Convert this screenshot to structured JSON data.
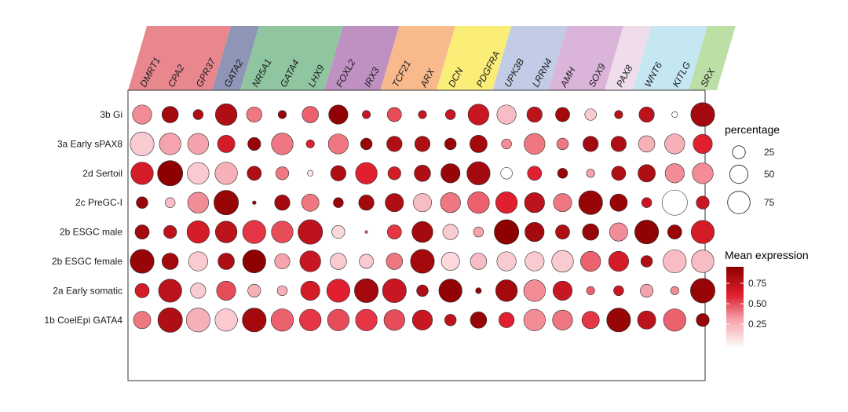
{
  "chart_data": {
    "type": "dot-plot",
    "genes": [
      "DMRT1",
      "CPA2",
      "GPR37",
      "GATA2",
      "NR5A1",
      "GATA4",
      "LHX9",
      "FOXL2",
      "IRX3",
      "TCF21",
      "ARX",
      "DCN",
      "PDGFRA",
      "UPK3B",
      "LRRN4",
      "AMH",
      "SOX9",
      "PAX8",
      "WNT6",
      "KITLG",
      "SRX"
    ],
    "groups": [
      {
        "genes": [
          "DMRT1",
          "CPA2",
          "GPR37"
        ],
        "color": "#E8888E"
      },
      {
        "genes": [
          "GATA2"
        ],
        "color": "#8F95B7"
      },
      {
        "genes": [
          "NR5A1",
          "GATA4",
          "LHX9"
        ],
        "color": "#8FC59F"
      },
      {
        "genes": [
          "FOXL2",
          "IRX3"
        ],
        "color": "#BF90C2"
      },
      {
        "genes": [
          "TCF21",
          "ARX"
        ],
        "color": "#F8BA8C"
      },
      {
        "genes": [
          "DCN",
          "PDGFRA"
        ],
        "color": "#FAEE78"
      },
      {
        "genes": [
          "UPK3B",
          "LRRN4"
        ],
        "color": "#C2CCE6"
      },
      {
        "genes": [
          "AMH",
          "SOX9"
        ],
        "color": "#DAB5D9"
      },
      {
        "genes": [
          "PAX8"
        ],
        "color": "#EFDDEC"
      },
      {
        "genes": [
          "WNT6",
          "KITLG"
        ],
        "color": "#C4E7F1"
      },
      {
        "genes": [
          "SRX"
        ],
        "color": "#BCDFA6"
      }
    ],
    "cell_types": [
      "3b Gi",
      "3a Early sPAX8",
      "2d Sertoil",
      "2c PreGC-I",
      "2b ESGC male",
      "2b ESGC female",
      "2a Early somatic",
      "1b CoelEpi GATA4"
    ],
    "percentage": [
      [
        55,
        40,
        15,
        70,
        35,
        10,
        40,
        55,
        10,
        30,
        10,
        15,
        65,
        55,
        35,
        30,
        20,
        10,
        35,
        5,
        85
      ],
      [
        85,
        70,
        65,
        45,
        25,
        70,
        10,
        60,
        20,
        35,
        35,
        20,
        45,
        15,
        65,
        20,
        35,
        35,
        40,
        60,
        55
      ],
      [
        75,
        95,
        70,
        75,
        30,
        25,
        5,
        35,
        70,
        25,
        40,
        55,
        80,
        20,
        30,
        15,
        10,
        30,
        45,
        55,
        65
      ],
      [
        20,
        15,
        65,
        90,
        2,
        35,
        45,
        15,
        35,
        50,
        50,
        60,
        70,
        70,
        60,
        50,
        85,
        45,
        15,
        95,
        25
      ],
      [
        30,
        25,
        75,
        70,
        80,
        70,
        90,
        25,
        1,
        30,
        65,
        35,
        15,
        90,
        55,
        30,
        40,
        50,
        85,
        30,
        80
      ],
      [
        85,
        40,
        55,
        40,
        80,
        35,
        65,
        40,
        30,
        40,
        85,
        50,
        40,
        55,
        55,
        70,
        60,
        60,
        20,
        80,
        75
      ],
      [
        30,
        80,
        35,
        55,
        25,
        15,
        55,
        80,
        85,
        85,
        20,
        80,
        5,
        70,
        70,
        55,
        10,
        15,
        25,
        10,
        90
      ],
      [
        45,
        90,
        85,
        75,
        85,
        75,
        70,
        70,
        70,
        65,
        60,
        20,
        40,
        35,
        70,
        60,
        45,
        85,
        50,
        75,
        25
      ]
    ],
    "expression": [
      [
        0.4,
        0.9,
        0.85,
        0.85,
        0.45,
        0.95,
        0.5,
        0.98,
        0.75,
        0.55,
        0.75,
        0.75,
        0.75,
        0.25,
        0.8,
        0.9,
        0.2,
        0.8,
        0.8,
        0.0,
        0.9
      ],
      [
        0.2,
        0.35,
        0.35,
        0.7,
        0.95,
        0.45,
        0.65,
        0.45,
        0.95,
        0.85,
        0.85,
        0.95,
        0.9,
        0.4,
        0.45,
        0.45,
        0.9,
        0.85,
        0.3,
        0.3,
        0.65
      ],
      [
        0.7,
        0.99,
        0.2,
        0.3,
        0.85,
        0.45,
        0.1,
        0.85,
        0.65,
        0.7,
        0.85,
        0.95,
        0.9,
        0.0,
        0.65,
        0.95,
        0.35,
        0.85,
        0.85,
        0.4,
        0.4
      ],
      [
        0.95,
        0.25,
        0.4,
        0.95,
        0.95,
        0.9,
        0.45,
        0.95,
        0.9,
        0.85,
        0.25,
        0.45,
        0.5,
        0.65,
        0.8,
        0.45,
        0.95,
        0.95,
        0.75,
        0.0,
        0.75
      ],
      [
        0.9,
        0.8,
        0.7,
        0.8,
        0.6,
        0.55,
        0.8,
        0.15,
        0.5,
        0.6,
        0.9,
        0.2,
        0.35,
        0.99,
        0.9,
        0.85,
        0.95,
        0.4,
        0.98,
        0.95,
        0.7
      ],
      [
        0.95,
        0.9,
        0.2,
        0.85,
        0.99,
        0.35,
        0.75,
        0.2,
        0.2,
        0.45,
        0.9,
        0.15,
        0.25,
        0.2,
        0.2,
        0.2,
        0.5,
        0.7,
        0.85,
        0.25,
        0.25
      ],
      [
        0.7,
        0.8,
        0.2,
        0.55,
        0.3,
        0.3,
        0.7,
        0.65,
        0.9,
        0.75,
        0.85,
        0.98,
        0.95,
        0.9,
        0.4,
        0.75,
        0.5,
        0.75,
        0.35,
        0.4,
        0.95
      ],
      [
        0.45,
        0.85,
        0.3,
        0.2,
        0.9,
        0.5,
        0.6,
        0.55,
        0.6,
        0.55,
        0.75,
        0.8,
        0.95,
        0.65,
        0.4,
        0.45,
        0.6,
        0.95,
        0.8,
        0.5,
        0.95
      ]
    ],
    "legend_size": {
      "title": "percentage",
      "values": [
        25,
        50,
        75
      ]
    },
    "legend_color": {
      "title": "Mean expression",
      "ticks": [
        0.25,
        0.5,
        0.75
      ],
      "tick_labels": [
        "0.25",
        "0.50",
        "0.75"
      ],
      "low": "#FFFFFF",
      "high": "#8B0000"
    }
  }
}
